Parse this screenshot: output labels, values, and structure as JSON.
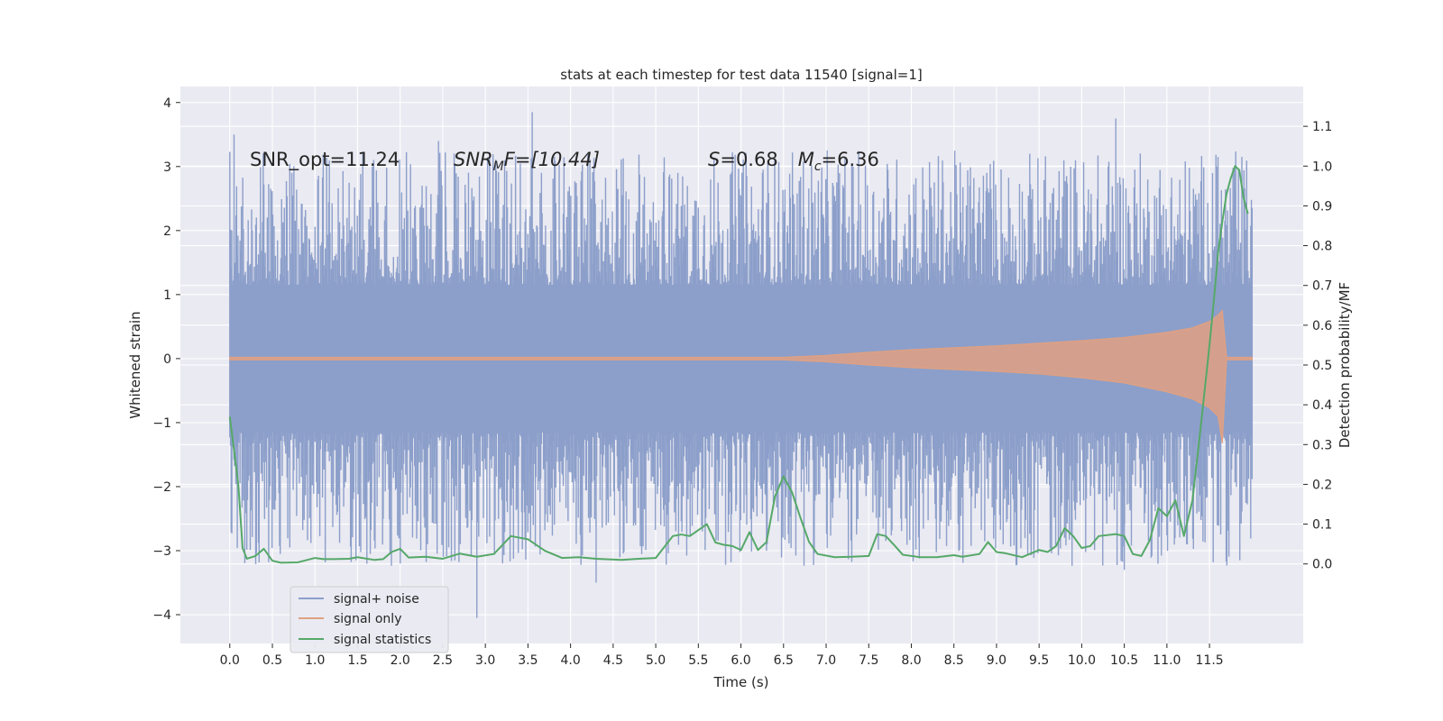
{
  "chart_data": {
    "type": "line",
    "title": "stats at each timestep for test data 11540 [signal=1]",
    "xlabel": "Time (s)",
    "ylabel": "Whitened strain",
    "ylabel_right": "Detection probability/MF",
    "xlim": [
      -0.58,
      12.6
    ],
    "ylim": [
      -4.45,
      4.25
    ],
    "ylim_right": [
      -0.2,
      1.2
    ],
    "x_ticks": [
      0.0,
      0.5,
      1.0,
      1.5,
      2.0,
      2.5,
      3.0,
      3.5,
      4.0,
      4.5,
      5.0,
      5.5,
      6.0,
      6.5,
      7.0,
      7.5,
      8.0,
      8.5,
      9.0,
      9.5,
      10.0,
      10.5,
      11.0,
      11.5
    ],
    "x_tick_labels": [
      "0.0",
      "0.5",
      "1.0",
      "1.5",
      "2.0",
      "2.5",
      "3.0",
      "3.5",
      "4.0",
      "4.5",
      "5.0",
      "5.5",
      "6.0",
      "6.5",
      "7.0",
      "7.5",
      "8.0",
      "8.5",
      "9.0",
      "9.5",
      "10.0",
      "10.5",
      "11.0",
      "11.5"
    ],
    "y_ticks": [
      -4,
      -3,
      -2,
      -1,
      0,
      1,
      2,
      3,
      4
    ],
    "y_tick_labels": [
      "−4",
      "−3",
      "−2",
      "−1",
      "0",
      "1",
      "2",
      "3",
      "4"
    ],
    "y_ticks_right": [
      0.0,
      0.1,
      0.2,
      0.3,
      0.4,
      0.5,
      0.6,
      0.7,
      0.8,
      0.9,
      1.0,
      1.1
    ],
    "y_tick_labels_right": [
      "0.0",
      "0.1",
      "0.2",
      "0.3",
      "0.4",
      "0.5",
      "0.6",
      "0.7",
      "0.8",
      "0.9",
      "1.0",
      "1.1"
    ],
    "grid": true,
    "legend_position": "lower-left",
    "annotations": [
      {
        "text": "SNR_opt=11.24",
        "x": 0.2,
        "y": 3.05
      },
      {
        "text": "SNR_MF=[10.44]",
        "x": 2.6,
        "y": 3.05
      },
      {
        "text": "S=0.68   M_c=6.36",
        "x": 5.6,
        "y": 3.05
      }
    ],
    "annotation_strings": {
      "snr_opt": "SNR_opt=11.24",
      "snr_mf_main": "SNR",
      "snr_mf_sub": "M",
      "snr_mf_rest": "F=[10.44]",
      "s_main": "S",
      "s_rest": "=0.68",
      "mc_main": "M",
      "mc_sub": "c",
      "mc_rest": "=6.36"
    },
    "series": [
      {
        "name": "signal+ noise",
        "axis": "left",
        "color": "#8c9fca",
        "kind": "noise",
        "x_range": [
          0.0,
          12.0
        ],
        "envelope_upper_range": [
          2.0,
          3.85
        ],
        "envelope_lower_range": [
          -1.5,
          -4.05
        ],
        "notable_spikes": [
          {
            "x": 0.05,
            "y": 3.5
          },
          {
            "x": 2.45,
            "y": 3.4
          },
          {
            "x": 3.55,
            "y": 3.85
          },
          {
            "x": 10.4,
            "y": 3.75
          },
          {
            "x": 11.6,
            "y": 3.15
          },
          {
            "x": 2.9,
            "y": -4.05
          },
          {
            "x": 4.3,
            "y": -3.5
          },
          {
            "x": 10.5,
            "y": -3.3
          }
        ]
      },
      {
        "name": "signal only",
        "axis": "left",
        "color": "#e0a082",
        "kind": "chirp",
        "x": [
          0.0,
          6.5,
          7.0,
          7.5,
          8.0,
          8.5,
          9.0,
          9.5,
          10.0,
          10.5,
          11.0,
          11.3,
          11.5,
          11.6,
          11.65,
          11.7,
          12.0
        ],
        "upper": [
          0.02,
          0.02,
          0.05,
          0.1,
          0.14,
          0.17,
          0.2,
          0.24,
          0.28,
          0.33,
          0.41,
          0.48,
          0.58,
          0.68,
          0.75,
          0.02,
          0.02
        ],
        "lower": [
          -0.02,
          -0.02,
          -0.05,
          -0.1,
          -0.14,
          -0.17,
          -0.2,
          -0.24,
          -0.3,
          -0.38,
          -0.52,
          -0.63,
          -0.77,
          -0.9,
          -1.32,
          -0.02,
          -0.02
        ]
      },
      {
        "name": "signal statistics",
        "axis": "right",
        "color": "#55a868",
        "x": [
          0.0,
          0.1,
          0.15,
          0.2,
          0.3,
          0.4,
          0.5,
          0.6,
          0.8,
          1.0,
          1.1,
          1.2,
          1.4,
          1.5,
          1.7,
          1.8,
          1.9,
          2.0,
          2.1,
          2.3,
          2.5,
          2.7,
          2.9,
          3.1,
          3.3,
          3.5,
          3.7,
          3.9,
          4.1,
          4.3,
          4.6,
          4.8,
          5.0,
          5.2,
          5.3,
          5.4,
          5.6,
          5.7,
          5.8,
          5.9,
          6.0,
          6.1,
          6.2,
          6.3,
          6.4,
          6.5,
          6.6,
          6.7,
          6.8,
          6.9,
          7.1,
          7.3,
          7.5,
          7.6,
          7.7,
          7.8,
          7.9,
          8.1,
          8.3,
          8.5,
          8.6,
          8.8,
          8.9,
          9.0,
          9.1,
          9.3,
          9.5,
          9.6,
          9.7,
          9.8,
          9.9,
          10.0,
          10.1,
          10.2,
          10.4,
          10.5,
          10.6,
          10.7,
          10.8,
          10.9,
          11.0,
          11.1,
          11.2,
          11.3,
          11.4,
          11.5,
          11.55,
          11.6,
          11.65,
          11.7,
          11.75,
          11.8,
          11.85,
          11.9,
          11.95
        ],
        "y": [
          0.37,
          0.2,
          0.04,
          0.013,
          0.02,
          0.038,
          0.008,
          0.003,
          0.004,
          0.015,
          0.012,
          0.012,
          0.013,
          0.017,
          0.01,
          0.012,
          0.03,
          0.038,
          0.016,
          0.018,
          0.013,
          0.026,
          0.018,
          0.025,
          0.07,
          0.062,
          0.033,
          0.015,
          0.017,
          0.013,
          0.01,
          0.013,
          0.015,
          0.07,
          0.074,
          0.07,
          0.1,
          0.054,
          0.048,
          0.045,
          0.035,
          0.08,
          0.035,
          0.055,
          0.17,
          0.22,
          0.18,
          0.115,
          0.055,
          0.025,
          0.017,
          0.018,
          0.02,
          0.075,
          0.07,
          0.047,
          0.023,
          0.017,
          0.017,
          0.022,
          0.018,
          0.025,
          0.055,
          0.03,
          0.027,
          0.017,
          0.035,
          0.03,
          0.045,
          0.09,
          0.07,
          0.04,
          0.045,
          0.07,
          0.075,
          0.07,
          0.025,
          0.02,
          0.06,
          0.14,
          0.12,
          0.16,
          0.07,
          0.16,
          0.35,
          0.55,
          0.66,
          0.78,
          0.86,
          0.93,
          0.97,
          1.0,
          0.99,
          0.92,
          0.88
        ]
      }
    ]
  }
}
